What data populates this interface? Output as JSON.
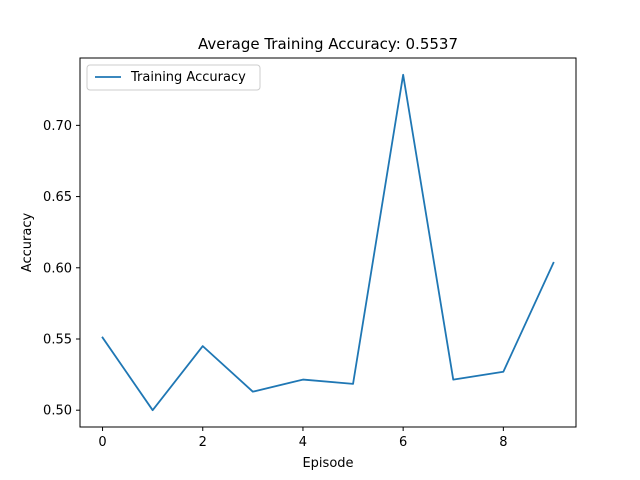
{
  "chart_data": {
    "type": "line",
    "title": "Average Training Accuracy: 0.5537",
    "xlabel": "Episode",
    "ylabel": "Accuracy",
    "x": [
      0,
      1,
      2,
      3,
      4,
      5,
      6,
      7,
      8,
      9
    ],
    "series": [
      {
        "name": "Training Accuracy",
        "values": [
          0.551,
          0.5,
          0.545,
          0.513,
          0.5215,
          0.5185,
          0.7355,
          0.5215,
          0.527,
          0.6035
        ],
        "color": "#1f77b4"
      }
    ],
    "xlim": [
      -0.45,
      9.45
    ],
    "ylim": [
      0.4882,
      0.7473
    ],
    "xticks": [
      0,
      2,
      4,
      6,
      8
    ],
    "xtick_labels": [
      "0",
      "2",
      "4",
      "6",
      "8"
    ],
    "yticks": [
      0.5,
      0.55,
      0.6,
      0.65,
      0.7
    ],
    "ytick_labels": [
      "0.50",
      "0.55",
      "0.60",
      "0.65",
      "0.70"
    ],
    "grid": false,
    "legend_position": "upper left"
  }
}
